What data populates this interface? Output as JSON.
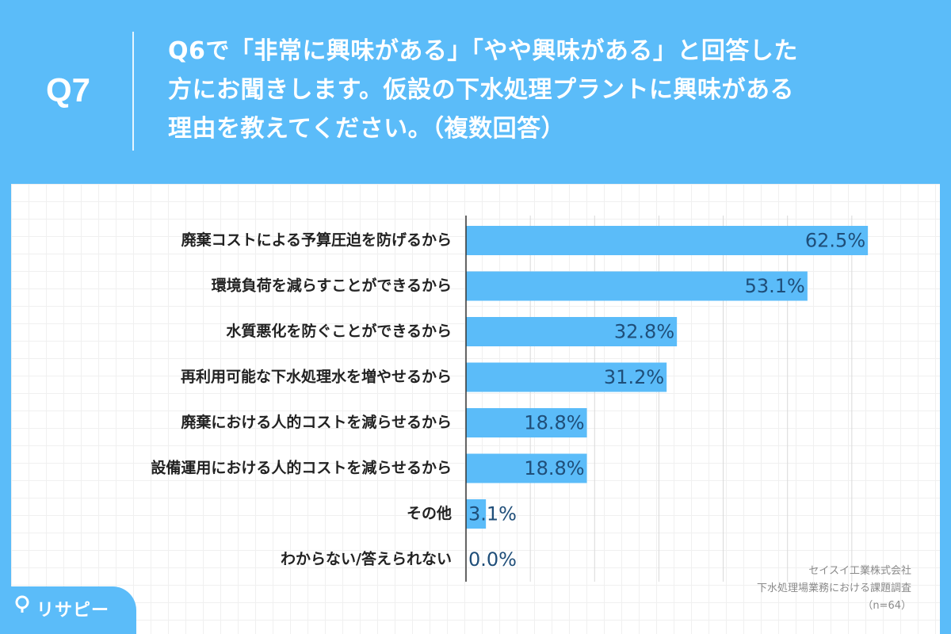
{
  "header": {
    "question_number": "Q7",
    "question_lines": [
      "Q6で「非常に興味がある」「やや興味がある」と回答した",
      "方にお聞きします。仮設の下水処理プラントに興味がある",
      "理由を教えてください。（複数回答）"
    ]
  },
  "chart_data": {
    "type": "bar",
    "orientation": "horizontal",
    "categories": [
      "廃棄コストによる予算圧迫を防げるから",
      "環境負荷を減らすことができるから",
      "水質悪化を防ぐことができるから",
      "再利用可能な下水処理水を増やせるから",
      "廃棄における人的コストを減らせるから",
      "設備運用における人的コストを減らせるから",
      "その他",
      "わからない/答えられない"
    ],
    "values": [
      62.5,
      53.1,
      32.8,
      31.2,
      18.8,
      18.8,
      3.1,
      0.0
    ],
    "value_labels": [
      "62.5%",
      "53.1%",
      "32.8%",
      "31.2%",
      "18.8%",
      "18.8%",
      "3.1%",
      "0.0%"
    ],
    "xlim": [
      0,
      70
    ],
    "grid": true,
    "bar_color": "#5bbcf9",
    "label_color": "#1f4e79"
  },
  "source": {
    "company": "セイスイ工業株式会社",
    "survey": "下水処理場業務における課題調査",
    "n": "（n=64）"
  },
  "logo": {
    "icon": "pin-icon",
    "text": "リサピー"
  },
  "colors": {
    "background": "#5bbcf9",
    "panel": "#ffffff"
  }
}
